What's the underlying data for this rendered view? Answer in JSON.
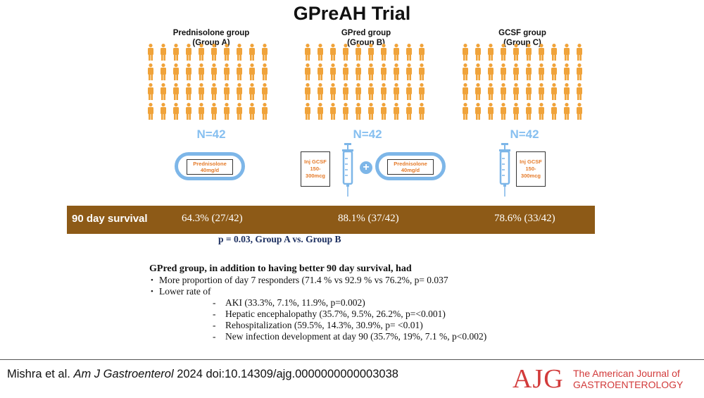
{
  "title": "GPreAH Trial",
  "groups": [
    {
      "name": "Prednisolone group",
      "sub": "(Group A)",
      "n": "N=42"
    },
    {
      "name": "GPred group",
      "sub": "(Group B)",
      "n": "N=42"
    },
    {
      "name": "GCSF group",
      "sub": "(Group C)",
      "n": "N=42"
    }
  ],
  "treatments": {
    "prednisolone": [
      "Prednisolone",
      "40mg/d"
    ],
    "gcsf": [
      "Inj GCSF",
      "150-",
      "300mcg"
    ],
    "plus": "+"
  },
  "survival": {
    "label": "90 day survival",
    "values": [
      "64.3% (27/42)",
      "88.1% (37/42)",
      "78.6% (33/42)"
    ],
    "p_value": "p = 0.03, Group A vs. Group B"
  },
  "notes": {
    "heading": "GPred group, in addition to having better 90 day survival, had",
    "bullets": [
      "More proportion of day 7 responders (71.4 % vs 92.9 % vs 76.2%, p= 0.037",
      "Lower rate of"
    ],
    "dash_symbol": "-",
    "sub_items": [
      "AKI (33.3%, 7.1%, 11.9%, p=0.002)",
      "Hepatic encephalopathy (35.7%, 9.5%, 26.2%, p=<0.001)",
      "Rehospitalization (59.5%, 14.3%, 30.9%, p= <0.01)",
      "New infection development at day 90 (35.7%, 19%, 7.1 %, p<0.002)"
    ]
  },
  "citation": {
    "authors": "Mishra et al.",
    "journal": "Am J Gastroenterol",
    "rest": "2024 doi:10.14309/ajg.0000000000003038"
  },
  "logo": {
    "mark": "AJG",
    "line1": "The American Journal of",
    "line2": "GASTROENTEROLOGY"
  },
  "colors": {
    "person": "#f0a33a",
    "n_label": "#86bff0",
    "survival_bar": "#8d5a17",
    "treatment_text": "#e57b2a",
    "pill_border": "#7db6e8",
    "logo": "#d23a3a"
  },
  "icons": [
    "person-icon",
    "pill-icon",
    "syringe-icon",
    "plus-icon"
  ]
}
